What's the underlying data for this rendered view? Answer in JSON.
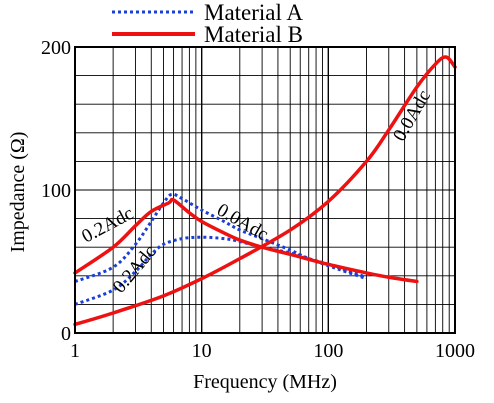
{
  "chart_data": {
    "type": "line",
    "title": "",
    "xlabel": "Frequency (MHz)",
    "ylabel": "Impedance (Ω)",
    "x_scale": "log",
    "xlim": [
      1,
      1000
    ],
    "ylim": [
      0,
      200
    ],
    "x_ticks": [
      1,
      10,
      100,
      1000
    ],
    "x_tick_labels": [
      "1",
      "10",
      "100",
      "1000"
    ],
    "y_ticks": [
      0,
      100,
      200
    ],
    "y_tick_labels": [
      "0",
      "100",
      "200"
    ],
    "grid": true,
    "legend_position": "top",
    "series": [
      {
        "name": "Material A",
        "label": "0.2Adc",
        "color": "#1a3fd6",
        "style": "dotted",
        "points": [
          [
            1,
            36
          ],
          [
            2,
            46
          ],
          [
            3,
            62
          ],
          [
            4,
            78
          ],
          [
            5,
            91
          ],
          [
            5.8,
            97
          ],
          [
            7,
            94
          ],
          [
            10,
            86
          ],
          [
            15,
            78
          ],
          [
            20,
            72
          ],
          [
            30,
            66
          ],
          [
            50,
            58
          ],
          [
            70,
            52
          ],
          [
            100,
            47
          ],
          [
            200,
            38
          ]
        ]
      },
      {
        "name": "Material A",
        "label": "0.0Adc",
        "color": "#1a3fd6",
        "style": "dotted",
        "points": [
          [
            1,
            20
          ],
          [
            2,
            30
          ],
          [
            3,
            43
          ],
          [
            4,
            55
          ],
          [
            5,
            62
          ],
          [
            7,
            66
          ],
          [
            10,
            67
          ],
          [
            15,
            66
          ],
          [
            20,
            64
          ],
          [
            30,
            60
          ],
          [
            50,
            56
          ],
          [
            70,
            52
          ],
          [
            100,
            48
          ],
          [
            200,
            39
          ]
        ]
      },
      {
        "name": "Material B",
        "label": "0.2Adc",
        "color": "#ee1111",
        "style": "solid",
        "points": [
          [
            1,
            42
          ],
          [
            2,
            60
          ],
          [
            3,
            75
          ],
          [
            4,
            85
          ],
          [
            5.5,
            91
          ],
          [
            6,
            93
          ],
          [
            8,
            84
          ],
          [
            10,
            78
          ],
          [
            15,
            70
          ],
          [
            20,
            65
          ],
          [
            30,
            60
          ],
          [
            50,
            55
          ],
          [
            100,
            48
          ],
          [
            200,
            42
          ],
          [
            300,
            39
          ],
          [
            500,
            36
          ]
        ]
      },
      {
        "name": "Material B",
        "label": "0.0Adc",
        "color": "#ee1111",
        "style": "solid",
        "points": [
          [
            1,
            6
          ],
          [
            2,
            14
          ],
          [
            5,
            26
          ],
          [
            10,
            38
          ],
          [
            20,
            52
          ],
          [
            50,
            72
          ],
          [
            100,
            92
          ],
          [
            200,
            120
          ],
          [
            300,
            142
          ],
          [
            500,
            172
          ],
          [
            700,
            188
          ],
          [
            850,
            193
          ],
          [
            1000,
            186
          ]
        ]
      }
    ],
    "annotations": [
      {
        "text": "0.2Adc",
        "x": 1.9,
        "y": 72,
        "angle": -28,
        "color": "#000000"
      },
      {
        "text": "0.2Adc",
        "x": 3.2,
        "y": 42,
        "angle": -50,
        "color": "#000000"
      },
      {
        "text": "0.0Adc",
        "x": 20,
        "y": 74,
        "angle": 30,
        "color": "#000000"
      },
      {
        "text": "0.0Adc",
        "x": 500,
        "y": 150,
        "angle": -60,
        "color": "#000000"
      }
    ],
    "legend": [
      {
        "label": "Material A",
        "color": "#1a3fd6",
        "style": "dotted"
      },
      {
        "label": "Material B",
        "color": "#ee1111",
        "style": "solid"
      }
    ]
  }
}
